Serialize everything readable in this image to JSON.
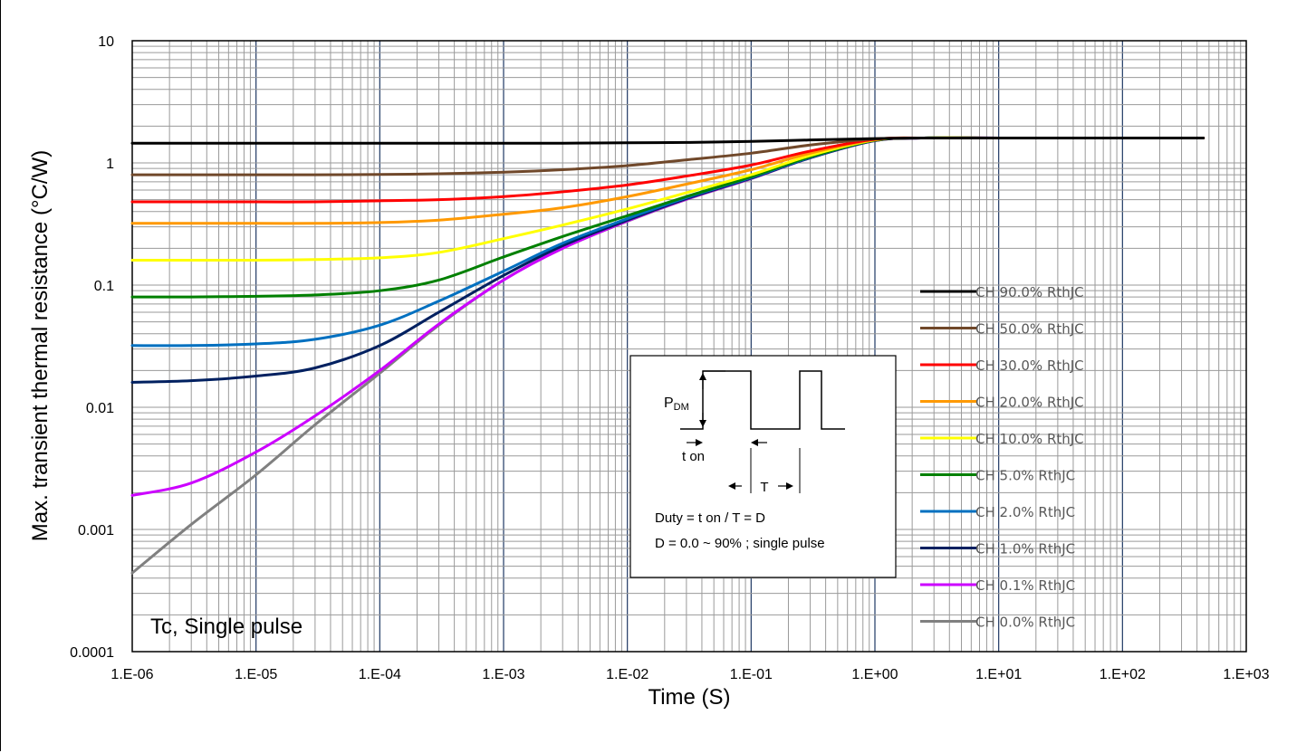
{
  "chart_data": {
    "type": "line",
    "title": "",
    "xlabel": "Time (S)",
    "ylabel": "Max. transient thermal resistance (°C/W)",
    "x_scale": "log",
    "y_scale": "log",
    "xlim": [
      1e-06,
      1000
    ],
    "ylim": [
      0.0001,
      10
    ],
    "grid": true,
    "x_tick_labels": [
      "1.E-06",
      "1.E-05",
      "1.E-04",
      "1.E-03",
      "1.E-02",
      "1.E-01",
      "1.E+00",
      "1.E+01",
      "1.E+02",
      "1.E+03"
    ],
    "y_tick_labels": [
      "0.0001",
      "0.001",
      "0.01",
      "0.1",
      "1",
      "10"
    ],
    "legend_position": "right",
    "x": [
      1e-06,
      3e-06,
      1e-05,
      3e-05,
      0.0001,
      0.0003,
      0.001,
      0.003,
      0.01,
      0.03,
      0.1,
      0.3,
      1,
      2.5,
      10,
      100,
      450
    ],
    "series": [
      {
        "name": "CH 90.0% RthJC",
        "color": "#000000",
        "values": [
          1.45,
          1.45,
          1.45,
          1.45,
          1.45,
          1.45,
          1.45,
          1.45,
          1.46,
          1.47,
          1.5,
          1.54,
          1.58,
          1.6,
          1.6,
          1.6,
          1.6
        ]
      },
      {
        "name": "CH 50.0% RthJC",
        "color": "#70482A",
        "values": [
          0.8,
          0.8,
          0.8,
          0.8,
          0.805,
          0.815,
          0.84,
          0.88,
          0.95,
          1.06,
          1.2,
          1.4,
          1.57,
          1.6,
          1.6,
          1.6,
          1.6
        ]
      },
      {
        "name": "CH 30.0% RthJC",
        "color": "#FF0000",
        "values": [
          0.48,
          0.48,
          0.48,
          0.48,
          0.49,
          0.5,
          0.53,
          0.58,
          0.66,
          0.78,
          0.96,
          1.25,
          1.56,
          1.6,
          1.6,
          1.6,
          1.6
        ]
      },
      {
        "name": "CH 20.0% RthJC",
        "color": "#FF9900",
        "values": [
          0.32,
          0.32,
          0.32,
          0.32,
          0.325,
          0.34,
          0.38,
          0.43,
          0.53,
          0.67,
          0.88,
          1.2,
          1.55,
          1.6,
          1.6,
          1.6,
          1.6
        ]
      },
      {
        "name": "CH 10.0% RthJC",
        "color": "#FFFF00",
        "values": [
          0.16,
          0.16,
          0.16,
          0.162,
          0.167,
          0.185,
          0.24,
          0.31,
          0.42,
          0.57,
          0.8,
          1.15,
          1.54,
          1.6,
          1.6,
          1.6,
          1.6
        ]
      },
      {
        "name": "CH 5.0% RthJC",
        "color": "#008000",
        "values": [
          0.08,
          0.08,
          0.081,
          0.083,
          0.09,
          0.11,
          0.17,
          0.25,
          0.37,
          0.53,
          0.77,
          1.12,
          1.53,
          1.6,
          1.6,
          1.6,
          1.6
        ]
      },
      {
        "name": "CH 2.0% RthJC",
        "color": "#0070C0",
        "values": [
          0.032,
          0.032,
          0.033,
          0.036,
          0.047,
          0.074,
          0.13,
          0.22,
          0.35,
          0.52,
          0.76,
          1.11,
          1.53,
          1.6,
          1.6,
          1.6,
          1.6
        ]
      },
      {
        "name": "CH 1.0% RthJC",
        "color": "#002060",
        "values": [
          0.016,
          0.0165,
          0.018,
          0.021,
          0.032,
          0.06,
          0.12,
          0.21,
          0.34,
          0.51,
          0.75,
          1.1,
          1.52,
          1.6,
          1.6,
          1.6,
          1.6
        ]
      },
      {
        "name": "CH 0.1% RthJC",
        "color": "#CC00FF",
        "values": [
          0.0019,
          0.0024,
          0.0043,
          0.0085,
          0.02,
          0.048,
          0.11,
          0.2,
          0.335,
          0.505,
          0.745,
          1.1,
          1.52,
          1.6,
          1.6,
          1.6,
          1.6
        ]
      },
      {
        "name": "CH 0.0% RthJC",
        "color": "#808080",
        "values": [
          0.00044,
          0.0011,
          0.0028,
          0.0072,
          0.019,
          0.047,
          0.11,
          0.2,
          0.333,
          0.503,
          0.742,
          1.1,
          1.52,
          1.6,
          1.6,
          1.6,
          1.6
        ]
      }
    ],
    "annotation": "Tc, Single pulse",
    "inset": {
      "pdm_label": "P",
      "pdm_sub": "DM",
      "ton_label": "t on",
      "period_label": "T",
      "duty_text": "Duty = t on / T = D",
      "range_text": "D = 0.0 ~ 90% ; single pulse"
    }
  }
}
